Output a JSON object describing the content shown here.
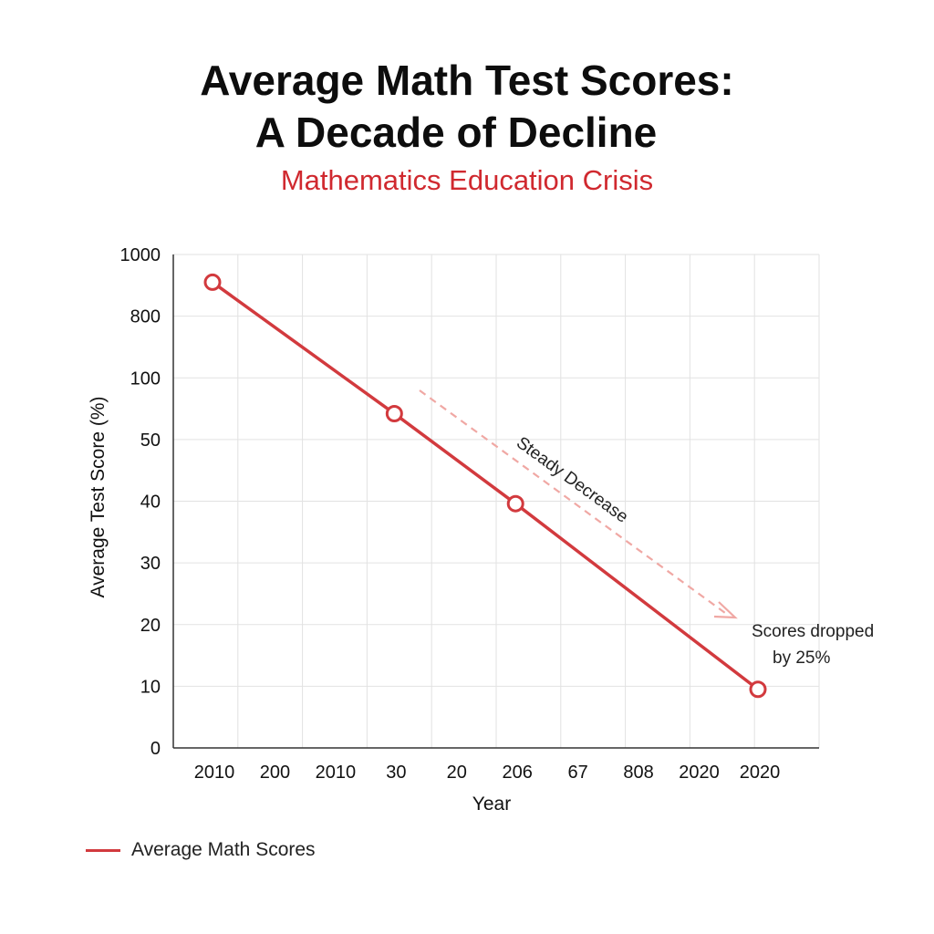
{
  "chart_data": {
    "type": "line",
    "title_lines": [
      "Average Math Test Scores:",
      "A Decade of Decline"
    ],
    "subtitle": "Mathematics Education Crisis",
    "xlabel": "Year",
    "ylabel": "Average Test Score (%)",
    "x_tick_labels": [
      "2010",
      "200",
      "2010",
      "30",
      "20",
      "206",
      "67",
      "808",
      "2020",
      "2020"
    ],
    "y_tick_labels": [
      "0",
      "10",
      "20",
      "30",
      "40",
      "50",
      "100",
      "800",
      "1000"
    ],
    "grid": true,
    "series": [
      {
        "name": "Average Math Scores",
        "color": "#d23a3e",
        "points": [
          {
            "x_index": 0,
            "y_level": 7.55
          },
          {
            "x_index": 3,
            "y_level": 5.42
          },
          {
            "x_index": 5,
            "y_level": 3.96
          },
          {
            "x_index": 9,
            "y_level": 0.95
          }
        ]
      }
    ],
    "annotations": [
      {
        "text": "Steady Decrease"
      },
      {
        "text_lines": [
          "Scores dropped",
          "by 25%"
        ]
      }
    ],
    "legend_position": "bottom-left"
  }
}
